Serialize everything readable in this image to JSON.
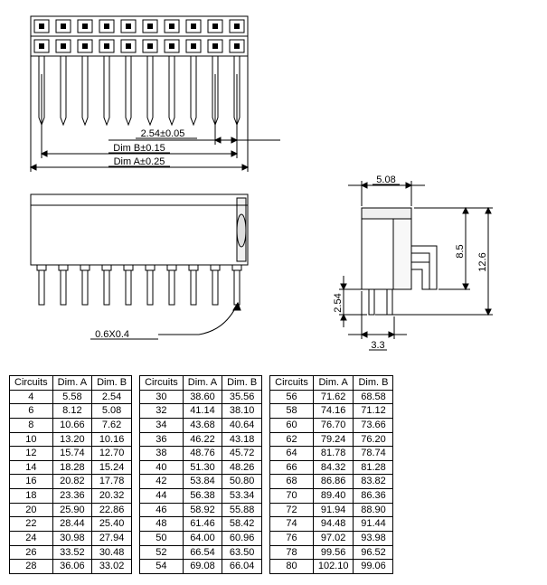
{
  "diagram": {
    "pitch_label": "2.54±0.05",
    "dimB_label": "Dim B±0.15",
    "dimA_label": "Dim A±0.25",
    "pin_shape_label": "0.6X0.4",
    "side_width": "5.08",
    "side_height_inner": "8.5",
    "side_height_outer": "12.6",
    "side_pin_pitch": "2.54",
    "side_body_depth": "3.3",
    "pin_count_per_row": 10
  },
  "table_headers": [
    "Circuits",
    "Dim. A",
    "Dim. B"
  ],
  "table1": [
    [
      "4",
      "5.58",
      "2.54"
    ],
    [
      "6",
      "8.12",
      "5.08"
    ],
    [
      "8",
      "10.66",
      "7.62"
    ],
    [
      "10",
      "13.20",
      "10.16"
    ],
    [
      "12",
      "15.74",
      "12.70"
    ],
    [
      "14",
      "18.28",
      "15.24"
    ],
    [
      "16",
      "20.82",
      "17.78"
    ],
    [
      "18",
      "23.36",
      "20.32"
    ],
    [
      "20",
      "25.90",
      "22.86"
    ],
    [
      "22",
      "28.44",
      "25.40"
    ],
    [
      "24",
      "30.98",
      "27.94"
    ],
    [
      "26",
      "33.52",
      "30.48"
    ],
    [
      "28",
      "36.06",
      "33.02"
    ]
  ],
  "table2": [
    [
      "30",
      "38.60",
      "35.56"
    ],
    [
      "32",
      "41.14",
      "38.10"
    ],
    [
      "34",
      "43.68",
      "40.64"
    ],
    [
      "36",
      "46.22",
      "43.18"
    ],
    [
      "38",
      "48.76",
      "45.72"
    ],
    [
      "40",
      "51.30",
      "48.26"
    ],
    [
      "42",
      "53.84",
      "50.80"
    ],
    [
      "44",
      "56.38",
      "53.34"
    ],
    [
      "46",
      "58.92",
      "55.88"
    ],
    [
      "48",
      "61.46",
      "58.42"
    ],
    [
      "50",
      "64.00",
      "60.96"
    ],
    [
      "52",
      "66.54",
      "63.50"
    ],
    [
      "54",
      "69.08",
      "66.04"
    ]
  ],
  "table3": [
    [
      "56",
      "71.62",
      "68.58"
    ],
    [
      "58",
      "74.16",
      "71.12"
    ],
    [
      "60",
      "76.70",
      "73.66"
    ],
    [
      "62",
      "79.24",
      "76.20"
    ],
    [
      "64",
      "81.78",
      "78.74"
    ],
    [
      "66",
      "84.32",
      "81.28"
    ],
    [
      "68",
      "86.86",
      "83.82"
    ],
    [
      "70",
      "89.40",
      "86.36"
    ],
    [
      "72",
      "91.94",
      "88.90"
    ],
    [
      "74",
      "94.48",
      "91.44"
    ],
    [
      "76",
      "97.02",
      "93.98"
    ],
    [
      "78",
      "99.56",
      "96.52"
    ],
    [
      "80",
      "102.10",
      "99.06"
    ]
  ]
}
